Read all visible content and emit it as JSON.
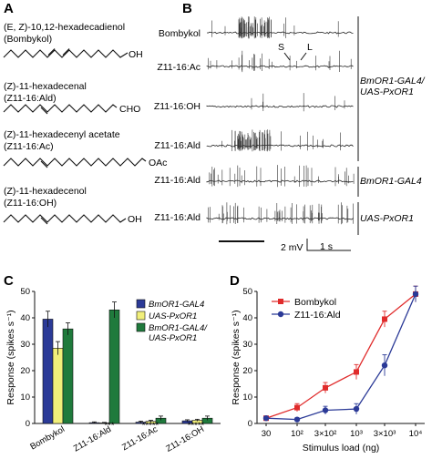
{
  "panels": {
    "A": {
      "letter": "A",
      "compounds": [
        {
          "line1": "(E, Z)-10,12-hexadecadienol",
          "line2": "(Bombykol)",
          "group": "OH"
        },
        {
          "line1": "(Z)-11-hexadecenal",
          "line2": "(Z11-16:Ald)",
          "group": "CHO"
        },
        {
          "line1": "(Z)-11-hexadecenyl acetate",
          "line2": "(Z11-16:Ac)",
          "group": "OAc"
        },
        {
          "line1": "(Z)-11-hexadecenol",
          "line2": "(Z11-16:OH)",
          "group": "OH"
        }
      ]
    },
    "B": {
      "letter": "B",
      "trace_labels": [
        "Bombykol",
        "Z11-16:Ac",
        "Z11-16:OH",
        "Z11-16:Ald",
        "Z11-16:Ald",
        "Z11-16:Ald"
      ],
      "spike_S": "S",
      "spike_L": "L",
      "group1_line1": "BmOR1-GAL4/",
      "group1_line2": "UAS-PxOR1",
      "group2": "BmOR1-GAL4",
      "group3": "UAS-PxOR1",
      "scale_mv": "2 mV",
      "scale_s": "1 s"
    },
    "C": {
      "letter": "C",
      "sig_marks": [
        "***",
        "*****",
        "*****"
      ]
    },
    "D": {
      "letter": "D"
    }
  },
  "chart_data": [
    {
      "panel": "C",
      "type": "bar",
      "categories": [
        "Bombykol",
        "Z11-16:Ald",
        "Z11-16:Ac",
        "Z11-16:OH"
      ],
      "series": [
        {
          "name": "BmOR1-GAL4",
          "color": "#2b3a97",
          "values": [
            39.5,
            0.3,
            0.5,
            1.0
          ],
          "errors": [
            3.0,
            0.3,
            0.4,
            0.4
          ]
        },
        {
          "name": "UAS-PxOR1",
          "color": "#f1ef7a",
          "values": [
            28.5,
            0.2,
            0.8,
            1.2
          ],
          "errors": [
            2.5,
            0.2,
            0.4,
            0.4
          ]
        },
        {
          "name": "BmOR1-GAL4/",
          "name2": "UAS-PxOR1",
          "color": "#1f7a3c",
          "values": [
            35.8,
            43.0,
            2.0,
            2.0
          ],
          "errors": [
            2.3,
            3.0,
            0.8,
            0.8
          ]
        }
      ],
      "ylabel": "Response (spikes s⁻¹)",
      "ylim": [
        0,
        50
      ],
      "yticks": [
        "0",
        "10",
        "20",
        "30",
        "40",
        "50"
      ],
      "legend": "top-right"
    },
    {
      "panel": "D",
      "type": "line",
      "x": [
        30,
        100,
        300,
        1000,
        3000,
        10000
      ],
      "xticks": [
        "30",
        "10²",
        "3×10²",
        "10³",
        "3×10³",
        "10⁴"
      ],
      "xlabel": "Stimulus load (ng)",
      "ylabel": "Response (spikes s⁻¹)",
      "ylim": [
        0,
        50
      ],
      "yticks": [
        "0",
        "10",
        "20",
        "30",
        "40",
        "50"
      ],
      "series": [
        {
          "name": "Bombykol",
          "color": "#e02b2b",
          "marker": "square",
          "values": [
            2,
            6,
            13.5,
            19.5,
            39.5,
            49
          ],
          "errors": [
            0.5,
            1.5,
            2.0,
            2.8,
            3.0,
            3.0
          ]
        },
        {
          "name": "Z11-16:Ald",
          "color": "#2b3a97",
          "marker": "circle",
          "values": [
            2,
            1.5,
            5,
            5.5,
            22,
            49
          ],
          "errors": [
            0.5,
            0.7,
            1.5,
            2.0,
            4.0,
            3.0
          ]
        }
      ],
      "legend": "top-left"
    }
  ]
}
